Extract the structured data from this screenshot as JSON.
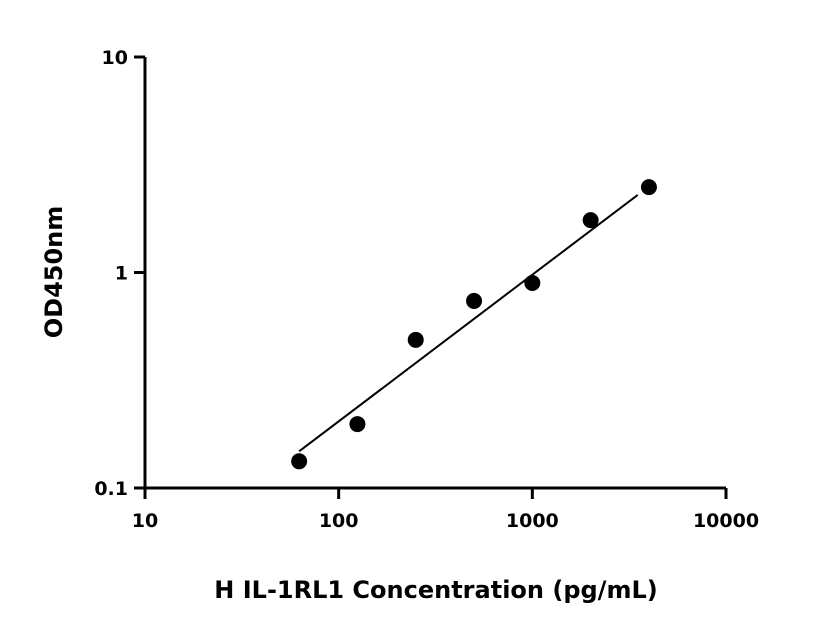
{
  "chart_data": {
    "type": "scatter",
    "title": "",
    "xlabel": "H IL-1RL1 Concentration (pg/mL)",
    "ylabel": "OD450nm",
    "x_scale": "log",
    "y_scale": "log",
    "xlim": [
      10,
      10000
    ],
    "ylim": [
      0.1,
      10
    ],
    "x_ticks": [
      "10",
      "100",
      "1000",
      "10000"
    ],
    "y_ticks": [
      "0.1",
      "1",
      "10"
    ],
    "grid": false,
    "series": [
      {
        "x": [
          62.5,
          125,
          250,
          500,
          1000,
          2000,
          4000
        ],
        "y": [
          0.133,
          0.198,
          0.487,
          0.738,
          0.894,
          1.75,
          2.49
        ],
        "marker": "circle",
        "color": "#000000"
      }
    ],
    "fit_line": {
      "x": [
        62.5,
        3500
      ],
      "y": [
        0.148,
        2.29
      ],
      "color": "#000000"
    }
  }
}
